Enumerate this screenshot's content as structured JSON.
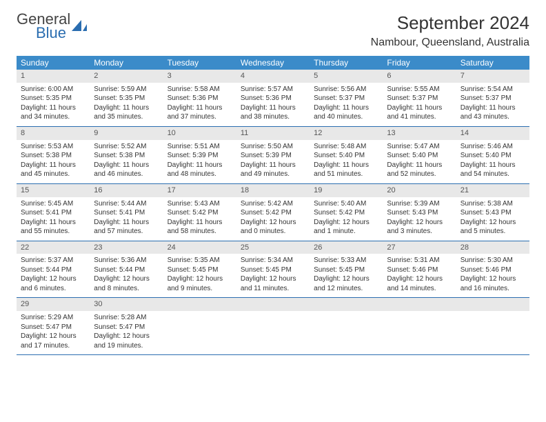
{
  "brand": {
    "name1": "General",
    "name2": "Blue"
  },
  "title": "September 2024",
  "location": "Nambour, Queensland, Australia",
  "weekdays": [
    "Sunday",
    "Monday",
    "Tuesday",
    "Wednesday",
    "Thursday",
    "Friday",
    "Saturday"
  ],
  "colors": {
    "header_bg": "#3b8bc9",
    "header_text": "#ffffff",
    "daynum_bg": "#e8e8e8",
    "rule": "#2a6db0",
    "brand_blue": "#2a6db0"
  },
  "typography": {
    "title_fontsize": 26,
    "location_fontsize": 16,
    "weekday_fontsize": 12,
    "body_fontsize": 10
  },
  "weeks": [
    [
      {
        "n": "1",
        "sr": "6:00 AM",
        "ss": "5:35 PM",
        "dl": "11 hours and 34 minutes."
      },
      {
        "n": "2",
        "sr": "5:59 AM",
        "ss": "5:35 PM",
        "dl": "11 hours and 35 minutes."
      },
      {
        "n": "3",
        "sr": "5:58 AM",
        "ss": "5:36 PM",
        "dl": "11 hours and 37 minutes."
      },
      {
        "n": "4",
        "sr": "5:57 AM",
        "ss": "5:36 PM",
        "dl": "11 hours and 38 minutes."
      },
      {
        "n": "5",
        "sr": "5:56 AM",
        "ss": "5:37 PM",
        "dl": "11 hours and 40 minutes."
      },
      {
        "n": "6",
        "sr": "5:55 AM",
        "ss": "5:37 PM",
        "dl": "11 hours and 41 minutes."
      },
      {
        "n": "7",
        "sr": "5:54 AM",
        "ss": "5:37 PM",
        "dl": "11 hours and 43 minutes."
      }
    ],
    [
      {
        "n": "8",
        "sr": "5:53 AM",
        "ss": "5:38 PM",
        "dl": "11 hours and 45 minutes."
      },
      {
        "n": "9",
        "sr": "5:52 AM",
        "ss": "5:38 PM",
        "dl": "11 hours and 46 minutes."
      },
      {
        "n": "10",
        "sr": "5:51 AM",
        "ss": "5:39 PM",
        "dl": "11 hours and 48 minutes."
      },
      {
        "n": "11",
        "sr": "5:50 AM",
        "ss": "5:39 PM",
        "dl": "11 hours and 49 minutes."
      },
      {
        "n": "12",
        "sr": "5:48 AM",
        "ss": "5:40 PM",
        "dl": "11 hours and 51 minutes."
      },
      {
        "n": "13",
        "sr": "5:47 AM",
        "ss": "5:40 PM",
        "dl": "11 hours and 52 minutes."
      },
      {
        "n": "14",
        "sr": "5:46 AM",
        "ss": "5:40 PM",
        "dl": "11 hours and 54 minutes."
      }
    ],
    [
      {
        "n": "15",
        "sr": "5:45 AM",
        "ss": "5:41 PM",
        "dl": "11 hours and 55 minutes."
      },
      {
        "n": "16",
        "sr": "5:44 AM",
        "ss": "5:41 PM",
        "dl": "11 hours and 57 minutes."
      },
      {
        "n": "17",
        "sr": "5:43 AM",
        "ss": "5:42 PM",
        "dl": "11 hours and 58 minutes."
      },
      {
        "n": "18",
        "sr": "5:42 AM",
        "ss": "5:42 PM",
        "dl": "12 hours and 0 minutes."
      },
      {
        "n": "19",
        "sr": "5:40 AM",
        "ss": "5:42 PM",
        "dl": "12 hours and 1 minute."
      },
      {
        "n": "20",
        "sr": "5:39 AM",
        "ss": "5:43 PM",
        "dl": "12 hours and 3 minutes."
      },
      {
        "n": "21",
        "sr": "5:38 AM",
        "ss": "5:43 PM",
        "dl": "12 hours and 5 minutes."
      }
    ],
    [
      {
        "n": "22",
        "sr": "5:37 AM",
        "ss": "5:44 PM",
        "dl": "12 hours and 6 minutes."
      },
      {
        "n": "23",
        "sr": "5:36 AM",
        "ss": "5:44 PM",
        "dl": "12 hours and 8 minutes."
      },
      {
        "n": "24",
        "sr": "5:35 AM",
        "ss": "5:45 PM",
        "dl": "12 hours and 9 minutes."
      },
      {
        "n": "25",
        "sr": "5:34 AM",
        "ss": "5:45 PM",
        "dl": "12 hours and 11 minutes."
      },
      {
        "n": "26",
        "sr": "5:33 AM",
        "ss": "5:45 PM",
        "dl": "12 hours and 12 minutes."
      },
      {
        "n": "27",
        "sr": "5:31 AM",
        "ss": "5:46 PM",
        "dl": "12 hours and 14 minutes."
      },
      {
        "n": "28",
        "sr": "5:30 AM",
        "ss": "5:46 PM",
        "dl": "12 hours and 16 minutes."
      }
    ],
    [
      {
        "n": "29",
        "sr": "5:29 AM",
        "ss": "5:47 PM",
        "dl": "12 hours and 17 minutes."
      },
      {
        "n": "30",
        "sr": "5:28 AM",
        "ss": "5:47 PM",
        "dl": "12 hours and 19 minutes."
      },
      null,
      null,
      null,
      null,
      null
    ]
  ],
  "labels": {
    "sunrise": "Sunrise:",
    "sunset": "Sunset:",
    "daylight": "Daylight:"
  }
}
